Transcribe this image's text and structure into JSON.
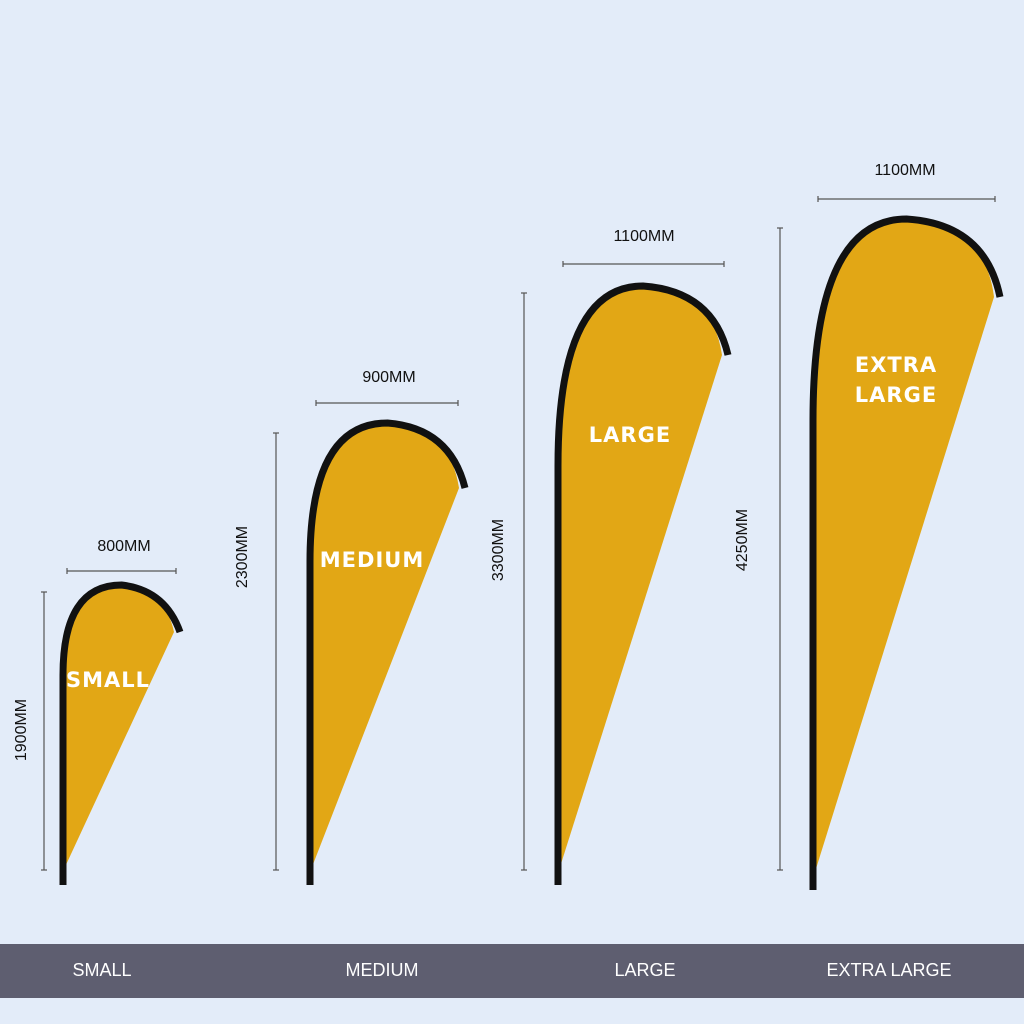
{
  "flags": [
    {
      "name": "SMALL",
      "flag_text": [
        "SMALL"
      ],
      "width": "800MM",
      "height": "1900MM"
    },
    {
      "name": "MEDIUM",
      "flag_text": [
        "MEDIUM"
      ],
      "width": "900MM",
      "height": "2300MM"
    },
    {
      "name": "LARGE",
      "flag_text": [
        "LARGE"
      ],
      "width": "1100MM",
      "height": "3300MM"
    },
    {
      "name": "EXTRA LARGE",
      "flag_text": [
        "EXTRA",
        "LARGE"
      ],
      "width": "1100MM",
      "height": "4250MM"
    }
  ]
}
